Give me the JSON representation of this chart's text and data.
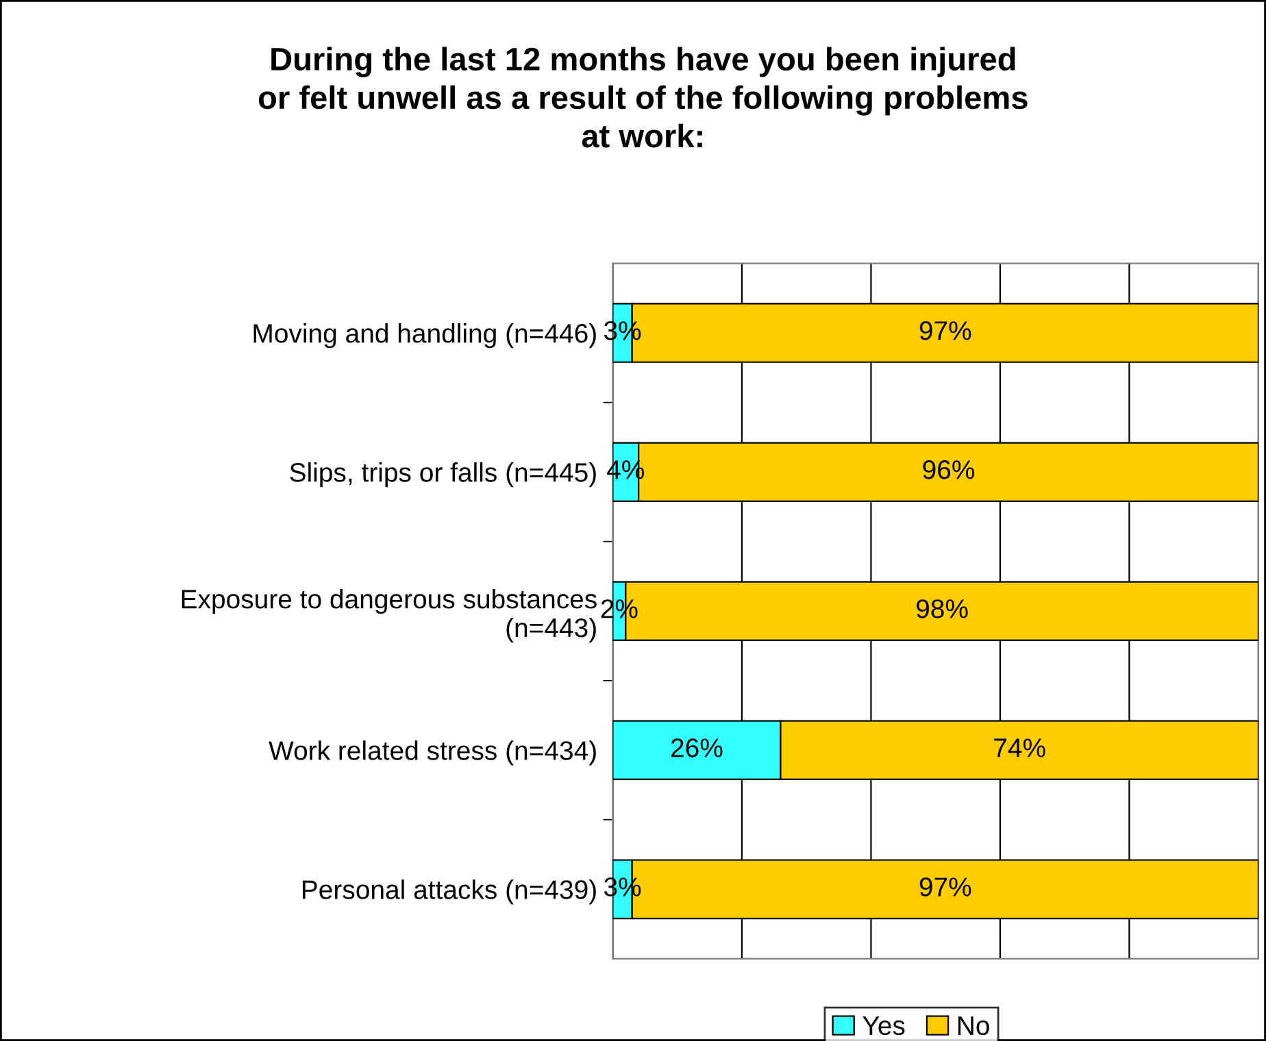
{
  "chart_data": {
    "type": "bar",
    "orientation": "horizontal",
    "stacked": true,
    "title": "During the last 12 months have you been injured\nor felt unwell as a result of the following problems\nat work:",
    "categories": [
      "Moving and handling (n=446)",
      "Slips, trips or falls (n=445)",
      "Exposure to dangerous substances\n(n=443)",
      "Work related stress (n=434)",
      "Personal attacks (n=439)"
    ],
    "series": [
      {
        "name": "Yes",
        "color": "#33ffff",
        "values": [
          3,
          4,
          2,
          26,
          3
        ],
        "value_labels": [
          "3%",
          "4%",
          "2%",
          "26%",
          "3%"
        ]
      },
      {
        "name": "No",
        "color": "#ffcc00",
        "values": [
          97,
          96,
          98,
          74,
          97
        ],
        "value_labels": [
          "97%",
          "96%",
          "98%",
          "74%",
          "97%"
        ]
      }
    ],
    "xlim": [
      0,
      100
    ],
    "xticks": [
      {
        "value": 0,
        "label": null
      },
      {
        "value": 20,
        "label": null
      },
      {
        "value": 40,
        "label": null
      },
      {
        "value": 60,
        "label": null
      },
      {
        "value": 80,
        "label": null
      },
      {
        "value": 100,
        "label": null
      }
    ],
    "grid": "x",
    "legend": "bottom",
    "tick_labels": "y"
  }
}
